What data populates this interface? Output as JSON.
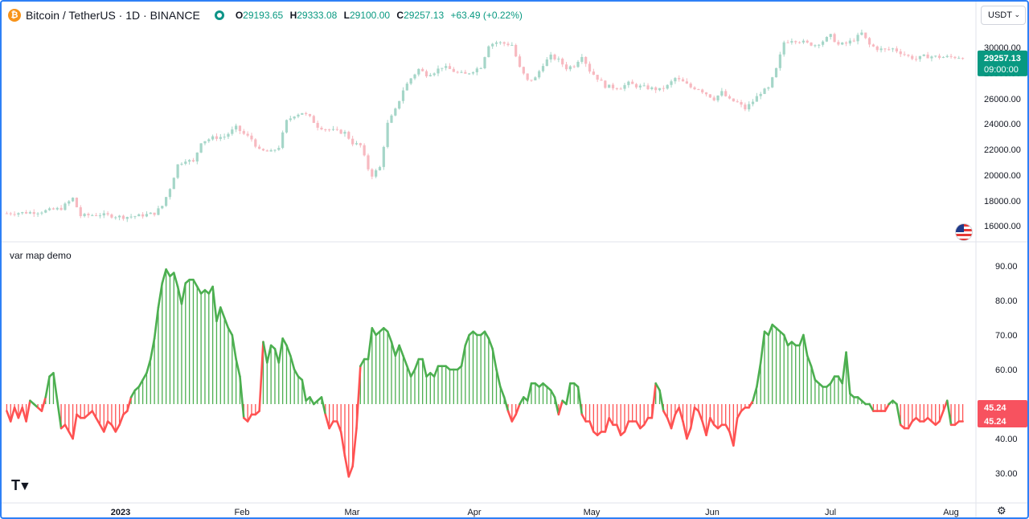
{
  "header": {
    "symbol": "Bitcoin / TetherUS · 1D · BINANCE",
    "coin_glyph": "₿",
    "ohlc": {
      "o_label": "O",
      "o": "29193.65",
      "h_label": "H",
      "h": "29333.08",
      "l_label": "L",
      "l": "29100.00",
      "c_label": "C",
      "c": "29257.13",
      "change": "+63.49 (+0.22%)"
    },
    "currency": "USDT",
    "currency_chevron": "⌄"
  },
  "colors": {
    "up": "#089981",
    "down": "#f23645",
    "osc_up": "#4caf50",
    "osc_down": "#ff5252",
    "grid": "#e0e3eb",
    "price_tag": "#089981",
    "osc_tag": "#f7525f",
    "frame": "#2e80f6"
  },
  "price_tag": {
    "price": "29257.13",
    "time": "09:00:00"
  },
  "osc_tag": {
    "value": "45.24",
    "value2": "45.24"
  },
  "indicator_label": "var map demo",
  "logo_text": "TV",
  "settings_icon": "gear-icon",
  "chart_data": [
    {
      "type": "candlestick",
      "title": "",
      "ylim": [
        15000,
        31500
      ],
      "yticks": [
        "16000.00",
        "18000.00",
        "20000.00",
        "22000.00",
        "24000.00",
        "26000.00",
        "28000.00",
        "30000.00"
      ],
      "ytick_values": [
        16000,
        18000,
        20000,
        22000,
        24000,
        26000,
        28000,
        30000
      ],
      "xticks": [
        "2023",
        "Feb",
        "Mar",
        "Apr",
        "May",
        "Jun",
        "Jul",
        "Aug"
      ],
      "close_path": [
        [
          0,
          17000
        ],
        [
          8,
          17100
        ],
        [
          14,
          17400
        ],
        [
          17,
          18200
        ],
        [
          19,
          16800
        ],
        [
          24,
          16900
        ],
        [
          30,
          16700
        ],
        [
          34,
          16800
        ],
        [
          38,
          17000
        ],
        [
          40,
          17600
        ],
        [
          42,
          19000
        ],
        [
          44,
          20800
        ],
        [
          46,
          21200
        ],
        [
          48,
          21000
        ],
        [
          50,
          22600
        ],
        [
          53,
          22900
        ],
        [
          56,
          23000
        ],
        [
          59,
          23700
        ],
        [
          61,
          23200
        ],
        [
          63,
          22800
        ],
        [
          65,
          21900
        ],
        [
          68,
          21800
        ],
        [
          70,
          22200
        ],
        [
          72,
          24200
        ],
        [
          74,
          24700
        ],
        [
          76,
          24900
        ],
        [
          78,
          24500
        ],
        [
          80,
          23800
        ],
        [
          82,
          23600
        ],
        [
          85,
          23400
        ],
        [
          87,
          23300
        ],
        [
          89,
          22500
        ],
        [
          91,
          22300
        ],
        [
          93,
          20500
        ],
        [
          94,
          20000
        ],
        [
          96,
          20600
        ],
        [
          98,
          24000
        ],
        [
          100,
          25100
        ],
        [
          102,
          26700
        ],
        [
          104,
          27600
        ],
        [
          106,
          28300
        ],
        [
          108,
          27900
        ],
        [
          110,
          28100
        ],
        [
          112,
          28500
        ],
        [
          114,
          28300
        ],
        [
          116,
          28000
        ],
        [
          118,
          27900
        ],
        [
          120,
          28200
        ],
        [
          122,
          28500
        ],
        [
          124,
          30200
        ],
        [
          126,
          30400
        ],
        [
          128,
          30300
        ],
        [
          130,
          30200
        ],
        [
          132,
          28400
        ],
        [
          134,
          27400
        ],
        [
          136,
          27600
        ],
        [
          138,
          28700
        ],
        [
          140,
          29300
        ],
        [
          142,
          29000
        ],
        [
          144,
          28400
        ],
        [
          146,
          28600
        ],
        [
          148,
          29400
        ],
        [
          150,
          28200
        ],
        [
          152,
          27600
        ],
        [
          154,
          27000
        ],
        [
          156,
          26900
        ],
        [
          158,
          26900
        ],
        [
          160,
          27200
        ],
        [
          162,
          27000
        ],
        [
          164,
          26900
        ],
        [
          166,
          26800
        ],
        [
          168,
          26700
        ],
        [
          170,
          27000
        ],
        [
          172,
          27600
        ],
        [
          174,
          27300
        ],
        [
          176,
          26900
        ],
        [
          178,
          26800
        ],
        [
          180,
          26400
        ],
        [
          182,
          26000
        ],
        [
          184,
          26500
        ],
        [
          186,
          25900
        ],
        [
          188,
          25700
        ],
        [
          190,
          25200
        ],
        [
          192,
          25800
        ],
        [
          194,
          26500
        ],
        [
          196,
          26800
        ],
        [
          198,
          28300
        ],
        [
          200,
          30400
        ],
        [
          202,
          30600
        ],
        [
          204,
          30500
        ],
        [
          206,
          30300
        ],
        [
          208,
          30200
        ],
        [
          210,
          30500
        ],
        [
          212,
          30900
        ],
        [
          214,
          30200
        ],
        [
          216,
          30300
        ],
        [
          218,
          30600
        ],
        [
          220,
          31100
        ],
        [
          222,
          30200
        ],
        [
          224,
          29900
        ],
        [
          226,
          29800
        ],
        [
          228,
          29900
        ],
        [
          230,
          29600
        ],
        [
          232,
          29300
        ],
        [
          234,
          29100
        ],
        [
          236,
          29300
        ],
        [
          238,
          29300
        ],
        [
          240,
          29250
        ]
      ]
    },
    {
      "type": "line",
      "title": "var map demo",
      "baseline": 50,
      "ylim": [
        25,
        97
      ],
      "yticks": [
        "30.00",
        "40.00",
        "50.00",
        "60.00",
        "70.00",
        "80.00",
        "90.00"
      ],
      "ytick_values": [
        30,
        40,
        50,
        60,
        70,
        80,
        90
      ],
      "values": [
        48,
        45,
        49,
        46,
        49,
        45,
        51,
        50,
        49,
        48,
        52,
        58,
        59,
        51,
        43,
        44,
        42,
        40,
        47,
        46,
        46,
        47,
        48,
        46,
        44,
        42,
        45,
        44,
        42,
        44,
        47,
        48,
        52,
        54,
        55,
        57,
        59,
        63,
        69,
        78,
        85,
        89,
        87,
        88,
        84,
        79,
        85,
        86,
        86,
        84,
        82,
        83,
        82,
        84,
        74,
        78,
        75,
        72,
        70,
        63,
        58,
        46,
        45,
        47,
        47,
        48,
        68,
        62,
        67,
        66,
        62,
        69,
        67,
        64,
        60,
        58,
        57,
        51,
        52,
        50,
        51,
        52,
        47,
        43,
        45,
        45,
        42,
        35,
        29,
        32,
        43,
        61,
        63,
        63,
        72,
        70,
        71,
        72,
        71,
        68,
        64,
        67,
        64,
        61,
        58,
        60,
        63,
        63,
        58,
        59,
        58,
        61,
        61,
        61,
        60,
        60,
        60,
        61,
        67,
        70,
        71,
        70,
        70,
        71,
        69,
        66,
        60,
        55,
        52,
        48,
        45,
        47,
        50,
        52,
        51,
        56,
        56,
        55,
        56,
        55,
        54,
        52,
        47,
        51,
        50,
        56,
        56,
        55,
        47,
        45,
        45,
        42,
        41,
        42,
        42,
        46,
        44,
        44,
        41,
        42,
        45,
        45,
        45,
        43,
        44,
        46,
        46,
        56,
        54,
        48,
        46,
        43,
        47,
        49,
        45,
        40,
        43,
        49,
        48,
        45,
        41,
        46,
        44,
        43,
        44,
        44,
        42,
        38,
        46,
        48,
        49,
        49,
        51,
        55,
        62,
        71,
        70,
        73,
        72,
        71,
        70,
        67,
        68,
        67,
        67,
        70,
        64,
        61,
        57,
        56,
        55,
        55,
        56,
        58,
        58,
        56,
        65,
        53,
        52,
        52,
        51,
        50,
        50,
        48,
        48,
        48,
        48,
        50,
        51,
        50,
        44,
        43,
        43,
        45,
        46,
        45,
        45,
        46,
        45,
        44,
        45,
        48,
        51,
        44,
        44,
        45,
        45
      ]
    }
  ]
}
